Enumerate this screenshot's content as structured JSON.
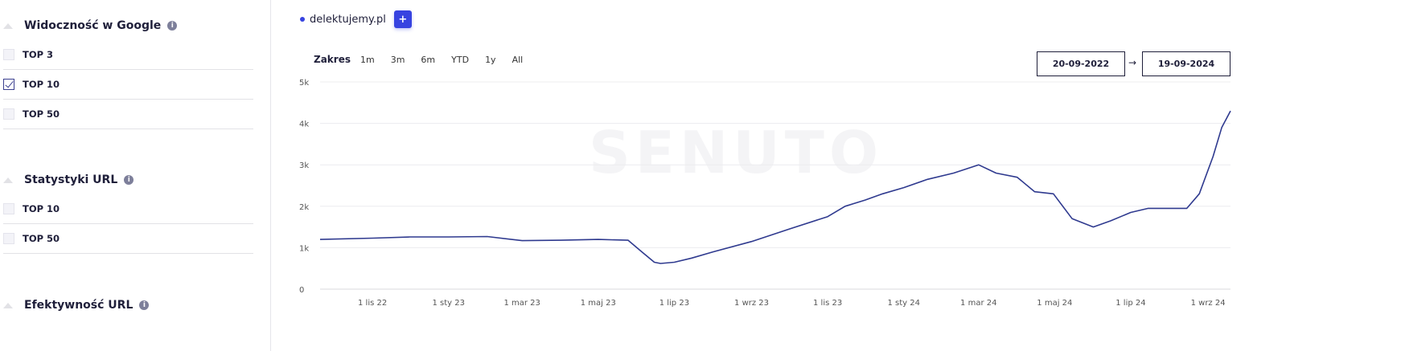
{
  "sidebar": {
    "sections": [
      {
        "title": "Widoczność w Google",
        "items": [
          {
            "label": "TOP 3",
            "checked": false
          },
          {
            "label": "TOP 10",
            "checked": true
          },
          {
            "label": "TOP 50",
            "checked": false
          }
        ]
      },
      {
        "title": "Statystyki URL",
        "items": [
          {
            "label": "TOP 10",
            "checked": false
          },
          {
            "label": "TOP 50",
            "checked": false
          }
        ]
      },
      {
        "title": "Efektywność URL",
        "items": []
      }
    ]
  },
  "legend": {
    "domain": "delektujemy.pl",
    "add_label": "+",
    "color": "#3743e0"
  },
  "range": {
    "label": "Zakres",
    "options": [
      "1m",
      "3m",
      "6m",
      "YTD",
      "1y",
      "All"
    ]
  },
  "dates": {
    "from": "20-09-2022",
    "to": "19-09-2024",
    "arrow": "→"
  },
  "watermark": "SENUTO",
  "chart_data": {
    "type": "line",
    "title": "",
    "xlabel": "",
    "ylabel": "",
    "ylim": [
      0,
      5000
    ],
    "xlim": [
      "2022-09-20",
      "2024-09-19"
    ],
    "y_ticks": [
      {
        "v": 0,
        "label": "0"
      },
      {
        "v": 1000,
        "label": "1k"
      },
      {
        "v": 2000,
        "label": "2k"
      },
      {
        "v": 3000,
        "label": "3k"
      },
      {
        "v": 4000,
        "label": "4k"
      },
      {
        "v": 5000,
        "label": "5k"
      }
    ],
    "x_ticks": [
      {
        "d": "2022-11-01",
        "label": "1 lis 22"
      },
      {
        "d": "2023-01-01",
        "label": "1 sty 23"
      },
      {
        "d": "2023-03-01",
        "label": "1 mar 23"
      },
      {
        "d": "2023-05-01",
        "label": "1 maj 23"
      },
      {
        "d": "2023-07-01",
        "label": "1 lip 23"
      },
      {
        "d": "2023-09-01",
        "label": "1 wrz 23"
      },
      {
        "d": "2023-11-01",
        "label": "1 lis 23"
      },
      {
        "d": "2024-01-01",
        "label": "1 sty 24"
      },
      {
        "d": "2024-03-01",
        "label": "1 mar 24"
      },
      {
        "d": "2024-05-01",
        "label": "1 maj 24"
      },
      {
        "d": "2024-07-01",
        "label": "1 lip 24"
      },
      {
        "d": "2024-09-01",
        "label": "1 wrz 24"
      }
    ],
    "grid": true,
    "series": [
      {
        "color": "#2f3a8f",
        "points": [
          [
            "2022-09-20",
            1200
          ],
          [
            "2022-11-01",
            1230
          ],
          [
            "2022-12-01",
            1260
          ],
          [
            "2023-01-01",
            1260
          ],
          [
            "2023-02-01",
            1270
          ],
          [
            "2023-03-01",
            1170
          ],
          [
            "2023-04-01",
            1180
          ],
          [
            "2023-05-01",
            1200
          ],
          [
            "2023-05-25",
            1180
          ],
          [
            "2023-06-05",
            900
          ],
          [
            "2023-06-15",
            650
          ],
          [
            "2023-06-20",
            620
          ],
          [
            "2023-07-01",
            650
          ],
          [
            "2023-07-15",
            750
          ],
          [
            "2023-08-01",
            900
          ],
          [
            "2023-09-01",
            1150
          ],
          [
            "2023-10-01",
            1450
          ],
          [
            "2023-11-01",
            1750
          ],
          [
            "2023-11-15",
            2000
          ],
          [
            "2023-12-01",
            2150
          ],
          [
            "2023-12-15",
            2300
          ],
          [
            "2024-01-01",
            2450
          ],
          [
            "2024-01-20",
            2650
          ],
          [
            "2024-02-10",
            2800
          ],
          [
            "2024-02-20",
            2900
          ],
          [
            "2024-03-01",
            3000
          ],
          [
            "2024-03-15",
            2800
          ],
          [
            "2024-04-01",
            2700
          ],
          [
            "2024-04-15",
            2350
          ],
          [
            "2024-04-30",
            2300
          ],
          [
            "2024-05-15",
            1700
          ],
          [
            "2024-06-01",
            1500
          ],
          [
            "2024-06-15",
            1650
          ],
          [
            "2024-07-01",
            1850
          ],
          [
            "2024-07-15",
            1950
          ],
          [
            "2024-08-15",
            1950
          ],
          [
            "2024-08-25",
            2300
          ],
          [
            "2024-09-05",
            3200
          ],
          [
            "2024-09-12",
            3900
          ],
          [
            "2024-09-19",
            4300
          ]
        ]
      }
    ]
  }
}
